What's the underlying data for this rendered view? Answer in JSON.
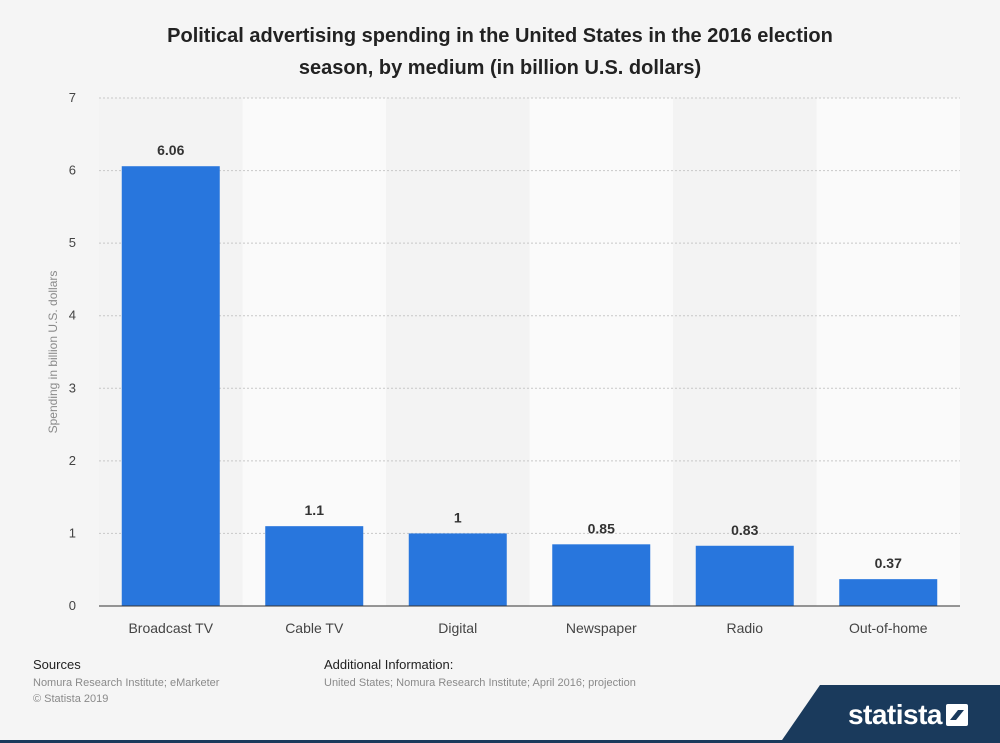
{
  "chart_data": {
    "type": "bar",
    "title_line1": "Political advertising spending in the United States in the 2016 election",
    "title_line2": "season, by medium (in billion U.S. dollars)",
    "categories": [
      "Broadcast TV",
      "Cable TV",
      "Digital",
      "Newspaper",
      "Radio",
      "Out-of-home"
    ],
    "values": [
      6.06,
      1.1,
      1,
      0.85,
      0.83,
      0.37
    ],
    "value_labels": [
      "6.06",
      "1.1",
      "1",
      "0.85",
      "0.83",
      "0.37"
    ],
    "xlabel": "",
    "ylabel": "Spending in billion U.S. dollars",
    "ylim": [
      0,
      7
    ],
    "yticks": [
      0,
      1,
      2,
      3,
      4,
      5,
      6,
      7
    ],
    "grid": true,
    "bar_color": "#2876dd"
  },
  "footer": {
    "sources_heading": "Sources",
    "sources_text": "Nomura Research Institute; eMarketer",
    "copyright": "© Statista 2019",
    "additional_heading": "Additional Information:",
    "additional_text": "United States; Nomura Research Institute; April 2016; projection"
  },
  "brand": {
    "name": "statista",
    "color": "#1a3a5c"
  }
}
